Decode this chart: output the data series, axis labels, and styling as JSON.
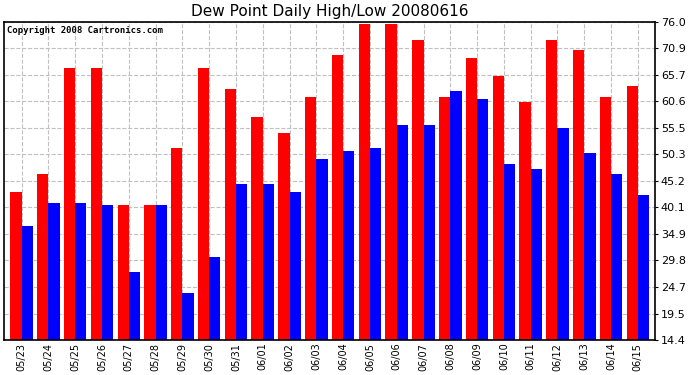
{
  "title": "Dew Point Daily High/Low 20080616",
  "copyright": "Copyright 2008 Cartronics.com",
  "dates": [
    "05/23",
    "05/24",
    "05/25",
    "05/26",
    "05/27",
    "05/28",
    "05/29",
    "05/30",
    "05/31",
    "06/01",
    "06/02",
    "06/03",
    "06/04",
    "06/05",
    "06/06",
    "06/07",
    "06/08",
    "06/09",
    "06/10",
    "06/11",
    "06/12",
    "06/13",
    "06/14",
    "06/15"
  ],
  "highs": [
    43.0,
    46.5,
    67.0,
    67.0,
    40.5,
    40.5,
    51.5,
    67.0,
    63.0,
    57.5,
    54.5,
    61.5,
    69.5,
    75.5,
    75.5,
    72.5,
    61.5,
    69.0,
    65.5,
    60.5,
    72.5,
    70.5,
    61.5,
    63.5
  ],
  "lows": [
    36.5,
    41.0,
    41.0,
    40.5,
    27.5,
    40.5,
    23.5,
    30.5,
    44.5,
    44.5,
    43.0,
    49.5,
    51.0,
    51.5,
    56.0,
    56.0,
    62.5,
    61.0,
    48.5,
    47.5,
    55.5,
    50.5,
    46.5,
    42.5
  ],
  "high_color": "#FF0000",
  "low_color": "#0000FF",
  "bg_color": "#FFFFFF",
  "grid_color": "#C0C0C0",
  "yticks": [
    14.4,
    19.5,
    24.7,
    29.8,
    34.9,
    40.1,
    45.2,
    50.3,
    55.5,
    60.6,
    65.7,
    70.9,
    76.0
  ],
  "ymin": 14.4,
  "ymax": 76.0,
  "bar_width": 0.42
}
